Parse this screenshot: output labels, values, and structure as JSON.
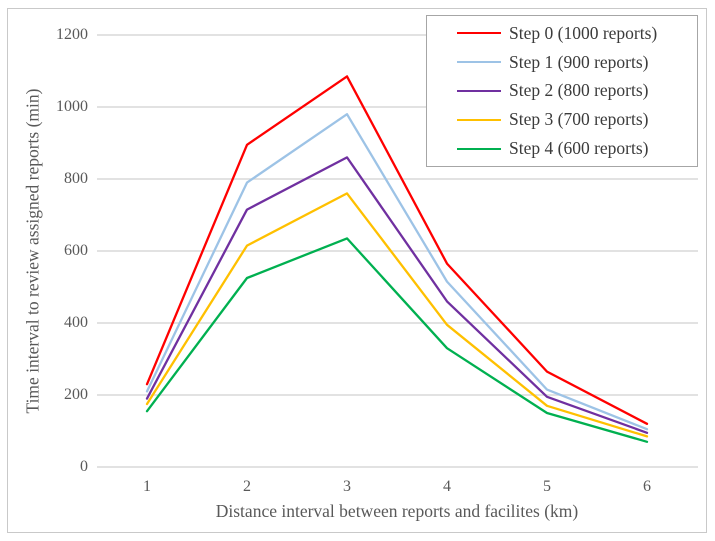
{
  "chart_data": {
    "type": "line",
    "title": "",
    "xlabel": "Distance interval between reports and facilites (km)",
    "ylabel": "Time interval to review assigned reports (min)",
    "x": [
      1,
      2,
      3,
      4,
      5,
      6
    ],
    "xtick_labels": [
      "1",
      "2",
      "3",
      "4",
      "5",
      "6"
    ],
    "yticks": [
      0,
      200,
      400,
      600,
      800,
      1000,
      1200
    ],
    "ylim": [
      0,
      1200
    ],
    "grid": "horizontal-only",
    "gridline_color": "#d9d9d9",
    "text_color": "#595959",
    "legend_position": "top-right",
    "series": [
      {
        "name": "Step 0 (1000 reports)",
        "color": "#FF0000",
        "values": [
          230,
          895,
          1085,
          565,
          265,
          120
        ]
      },
      {
        "name": "Step 1 (900 reports)",
        "color": "#9DC3E6",
        "values": [
          210,
          790,
          980,
          515,
          215,
          105
        ]
      },
      {
        "name": "Step 2 (800 reports)",
        "color": "#7030A0",
        "values": [
          190,
          715,
          860,
          460,
          195,
          95
        ]
      },
      {
        "name": "Step 3 (700 reports)",
        "color": "#FFC000",
        "values": [
          175,
          615,
          760,
          395,
          170,
          85
        ]
      },
      {
        "name": "Step 4 (600 reports)",
        "color": "#00B050",
        "values": [
          155,
          525,
          635,
          330,
          150,
          70
        ]
      }
    ]
  }
}
